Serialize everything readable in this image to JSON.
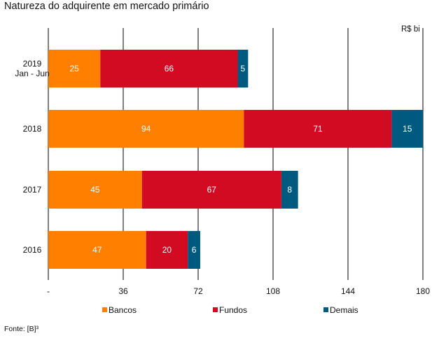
{
  "title": "Natureza do adquirente em mercado primário",
  "unit_label": "R$ bi",
  "source": "Fonte: [B]³",
  "colors": {
    "Bancos": "#FF8000",
    "Fundos": "#D20A22",
    "Demais": "#005A80"
  },
  "chart_data": {
    "type": "bar",
    "orientation": "horizontal",
    "stacked": true,
    "title": "Natureza do adquirente em mercado primário",
    "xlabel": "R$ bi",
    "ylabel": "",
    "categories": [
      {
        "lines": [
          "2019",
          "Jan - Jun"
        ]
      },
      {
        "lines": [
          "2018"
        ]
      },
      {
        "lines": [
          "2017"
        ]
      },
      {
        "lines": [
          "2016"
        ]
      }
    ],
    "series": [
      {
        "name": "Bancos",
        "values": [
          25,
          94,
          45,
          47
        ]
      },
      {
        "name": "Fundos",
        "values": [
          66,
          71,
          67,
          20
        ]
      },
      {
        "name": "Demais",
        "values": [
          5,
          15,
          8,
          6
        ]
      }
    ],
    "xlim": [
      0,
      180
    ],
    "xticks": [
      0,
      36,
      72,
      108,
      144,
      180
    ],
    "xtick_labels": [
      "-",
      "36",
      "72",
      "108",
      "144",
      "180"
    ],
    "grid": true,
    "legend": "bottom"
  }
}
